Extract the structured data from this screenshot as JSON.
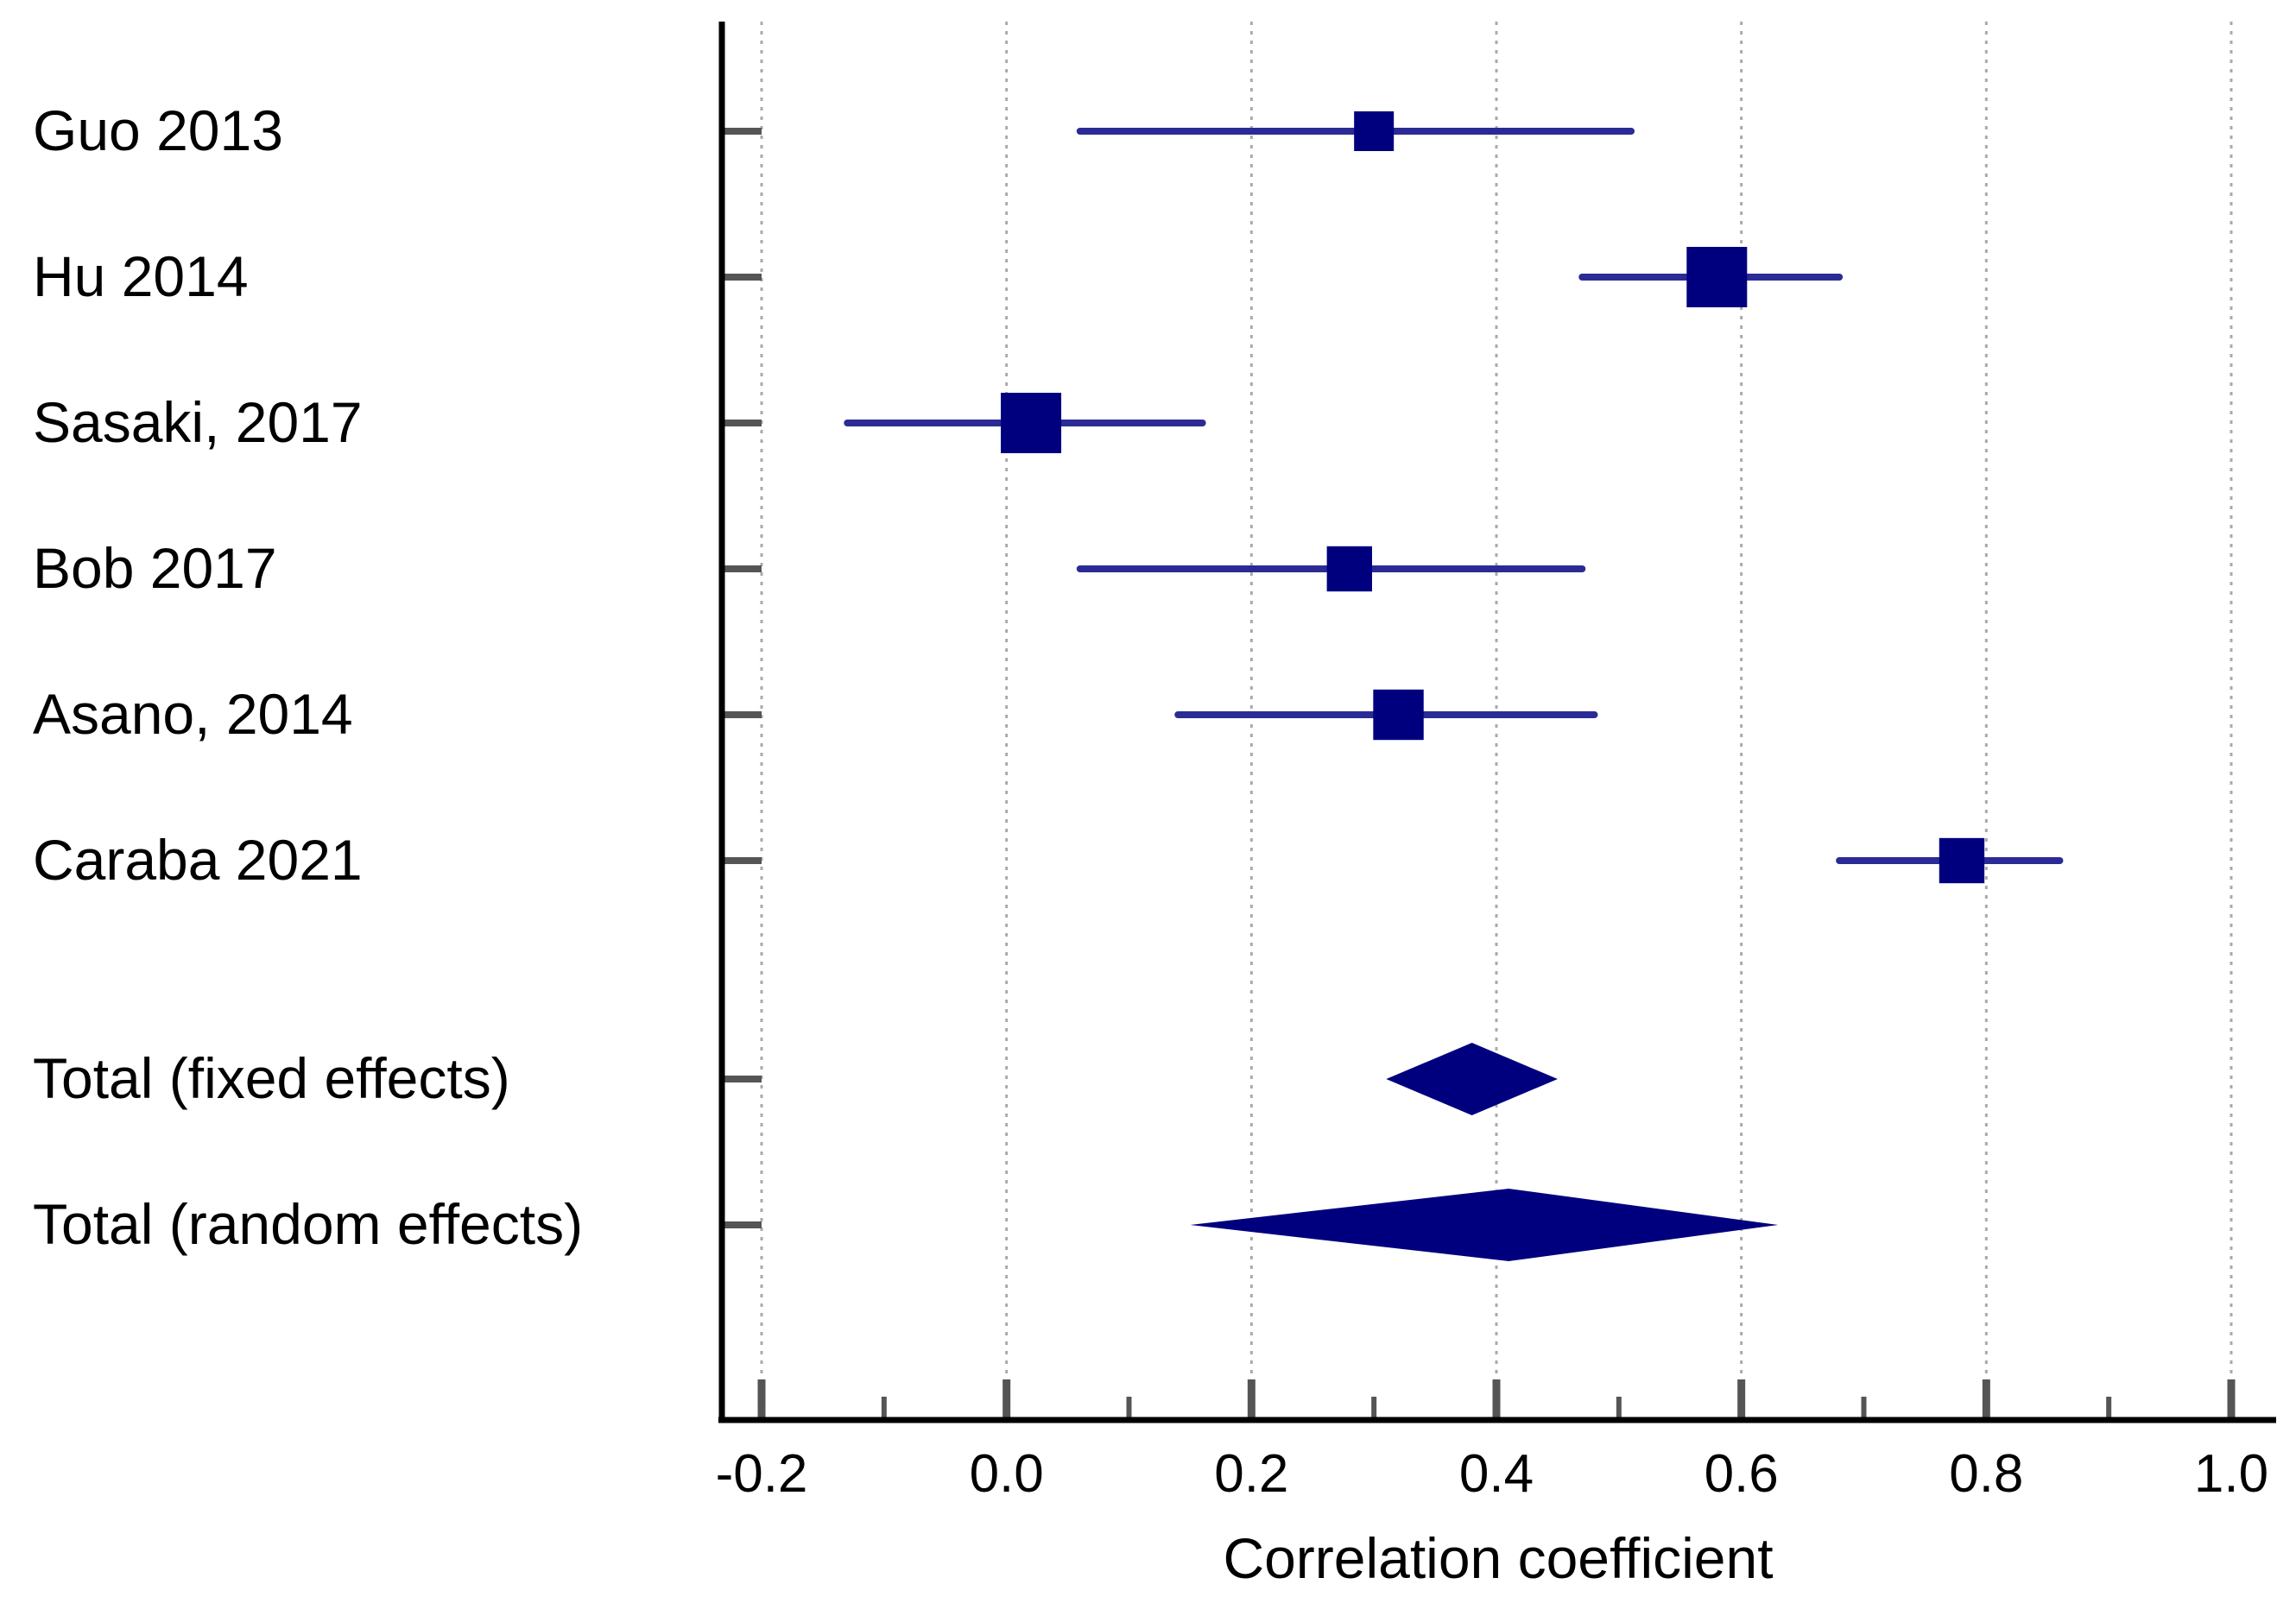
{
  "chart_data": {
    "type": "forest",
    "xlabel": "Correlation coefficient",
    "xlim": [
      -0.2,
      1.0
    ],
    "x_ticks": [
      "-0.2",
      "0.0",
      "0.2",
      "0.4",
      "0.6",
      "0.8",
      "1.0"
    ],
    "x_tick_values": [
      -0.2,
      0.0,
      0.2,
      0.4,
      0.6,
      0.8,
      1.0
    ],
    "x_minor_tick_values": [
      -0.1,
      0.1,
      0.3,
      0.5,
      0.7,
      0.9
    ],
    "grid": "vertical dotted at major ticks",
    "studies": [
      {
        "label": "Guo 2013",
        "estimate": 0.3,
        "ci_low": 0.06,
        "ci_high": 0.51,
        "weight": 1
      },
      {
        "label": "Hu 2014",
        "estimate": 0.58,
        "ci_low": 0.47,
        "ci_high": 0.68,
        "weight": 4
      },
      {
        "label": "Sasaki, 2017",
        "estimate": 0.02,
        "ci_low": -0.13,
        "ci_high": 0.16,
        "weight": 4
      },
      {
        "label": "Bob 2017",
        "estimate": 0.28,
        "ci_low": 0.06,
        "ci_high": 0.47,
        "weight": 1.6
      },
      {
        "label": "Asano, 2014",
        "estimate": 0.32,
        "ci_low": 0.14,
        "ci_high": 0.48,
        "weight": 2.3
      },
      {
        "label": "Caraba 2021",
        "estimate": 0.78,
        "ci_low": 0.68,
        "ci_high": 0.86,
        "weight": 1.6
      }
    ],
    "pooled": [
      {
        "label": "Total (fixed effects)",
        "estimate": 0.38,
        "ci_low": 0.31,
        "ci_high": 0.45
      },
      {
        "label": "Total (random effects)",
        "estimate": 0.41,
        "ci_low": 0.15,
        "ci_high": 0.63
      }
    ],
    "colors": {
      "marker": "#00007f",
      "ci_line": "#2b2b95",
      "axis": "#000000",
      "tick": "#555555",
      "grid": "#aaaaaa"
    }
  }
}
